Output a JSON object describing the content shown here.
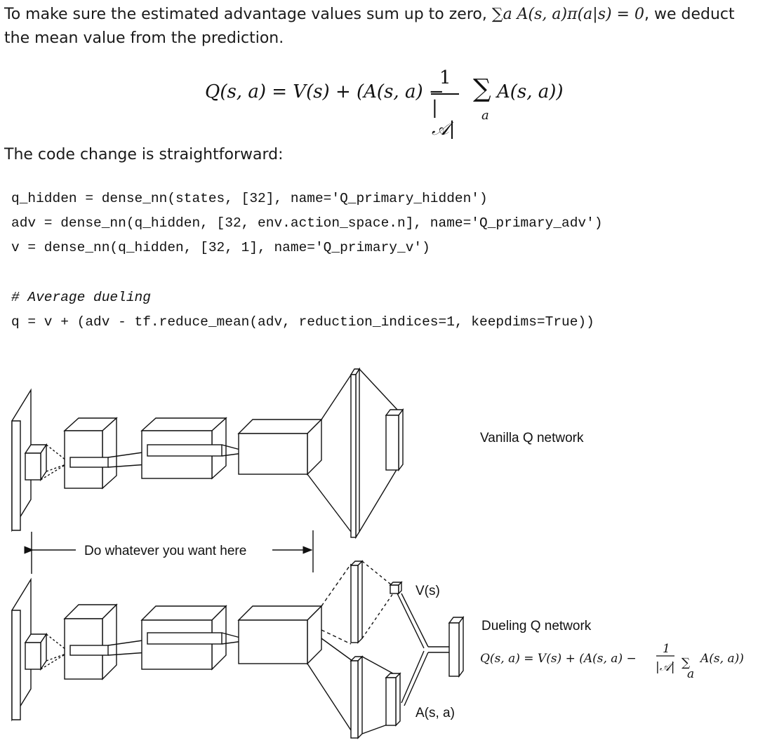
{
  "intro": {
    "text_before": "To make sure the estimated advantage values sum up to zero, ",
    "constraint": "∑a A(s, a)π(a|s) = 0",
    "text_after": ", we deduct",
    "line2": "the mean value from the prediction."
  },
  "formula": {
    "lhs": "Q(s, a) = V(s) + (A(s, a) −",
    "frac_num": "1",
    "frac_den": "|𝒜|",
    "sigma": "∑",
    "sigma_sub": "a",
    "rhs": "A(s, a))"
  },
  "code_intro": "The code change is straightforward:",
  "code": {
    "lines": [
      "q_hidden = dense_nn(states, [32], name='Q_primary_hidden')",
      "adv = dense_nn(q_hidden, [32, env.action_space.n], name='Q_primary_adv')",
      "v = dense_nn(q_hidden, [32, 1], name='Q_primary_v')",
      "# Average dueling",
      "q = v + (adv - tf.reduce_mean(adv, reduction_indices=1, keepdims=True))"
    ]
  },
  "diagram": {
    "vanilla_label": "Vanilla Q network",
    "middle_label": "Do whatever you want here",
    "dueling_label": "Dueling Q network",
    "v_label": "V(s)",
    "a_label": "A(s, a)",
    "dueling_formula": {
      "lhs": "Q(s, a) = V(s) + (A(s, a) −",
      "frac_num": "1",
      "frac_den": "|𝒜|",
      "sigma": "∑",
      "sigma_sub": "a",
      "rhs": "A(s, a))"
    }
  }
}
